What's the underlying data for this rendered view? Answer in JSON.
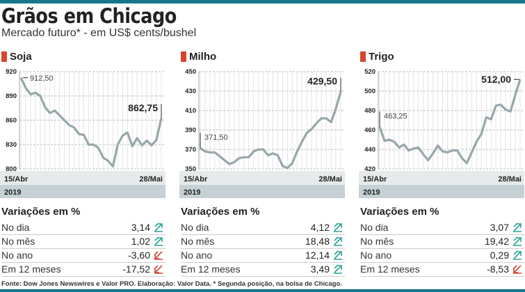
{
  "header": {
    "title": "Grãos em Chicago",
    "subtitle": "Mercado futuro* - em US$ cents/bushel"
  },
  "colors": {
    "brand_bar": "#14788a",
    "accent_square": "#d9442f",
    "line": "#97a6aa",
    "up": "#2aa39a",
    "down": "#d9442f",
    "date_band": "#e6eaeb",
    "year_band": "#c5d1d4"
  },
  "chart_data": [
    {
      "type": "line",
      "title": "Soja",
      "ylim": [
        800,
        920
      ],
      "yticks": [
        "920",
        "890",
        "860",
        "830",
        "800"
      ],
      "ytick_values": [
        920,
        890,
        860,
        830,
        800
      ],
      "x_start_label": "15/Abr",
      "x_end_label": "28/Mai",
      "year": "2019",
      "start_label": "912,50",
      "end_label": "862,75",
      "values": [
        912.5,
        900,
        892,
        894,
        890,
        876,
        869,
        872,
        866,
        860,
        854,
        851,
        843,
        842,
        830,
        830,
        826,
        814,
        810,
        803,
        830,
        841,
        845,
        828,
        838,
        829,
        835,
        829,
        836,
        862.75
      ]
    },
    {
      "type": "line",
      "title": "Milho",
      "ylim": [
        350,
        450
      ],
      "yticks": [
        "450",
        "430",
        "410",
        "390",
        "370",
        "350"
      ],
      "ytick_values": [
        450,
        430,
        410,
        390,
        370,
        350
      ],
      "x_start_label": "15/Abr",
      "x_end_label": "28/Mai",
      "year": "2019",
      "start_label": "371,50",
      "end_label": "429,50",
      "values": [
        371.5,
        368,
        367,
        367,
        363,
        359,
        355,
        357,
        361,
        362,
        362,
        368,
        370,
        370,
        364,
        366,
        364,
        353,
        351,
        356,
        368,
        378,
        387,
        391,
        397,
        402,
        402,
        398,
        412,
        429.5
      ]
    },
    {
      "type": "line",
      "title": "Trigo",
      "ylim": [
        420,
        520
      ],
      "yticks": [
        "520",
        "500",
        "480",
        "460",
        "440",
        "420"
      ],
      "ytick_values": [
        520,
        500,
        480,
        460,
        440,
        420
      ],
      "x_start_label": "15/Abr",
      "x_end_label": "28/Mai",
      "year": "2019",
      "start_label": "463,25",
      "end_label": "512,00",
      "values": [
        463.25,
        449,
        450,
        448,
        442,
        445,
        439,
        441,
        442,
        435,
        429,
        436,
        444,
        438,
        437,
        439,
        439,
        431,
        426,
        437,
        448,
        456,
        473,
        471,
        485,
        486,
        481,
        479,
        496,
        512
      ]
    }
  ],
  "variations": {
    "title": "Variações em %",
    "labels": [
      "No dia",
      "No mês",
      "No ano",
      "Em 12 meses"
    ],
    "panels": [
      {
        "values": [
          "3,14",
          "1,02",
          "-3,60",
          "-17,52"
        ],
        "icons": [
          "arrow-up-icon",
          "arrow-up-icon",
          "arrow-down-icon",
          "arrow-down-icon"
        ]
      },
      {
        "values": [
          "4,12",
          "18,48",
          "12,14",
          "3,49"
        ],
        "icons": [
          "arrow-up-icon",
          "arrow-up-icon",
          "arrow-up-icon",
          "arrow-up-icon"
        ]
      },
      {
        "values": [
          "3,07",
          "19,42",
          "0,29",
          "-8,53"
        ],
        "icons": [
          "arrow-up-icon",
          "arrow-up-icon",
          "arrow-up-icon",
          "arrow-down-icon"
        ]
      }
    ]
  },
  "source": "Fonte: Dow Jones Newswires e Valor PRO. Elaboração: Valor Data. * Segunda posição, na bolsa de Chicago."
}
